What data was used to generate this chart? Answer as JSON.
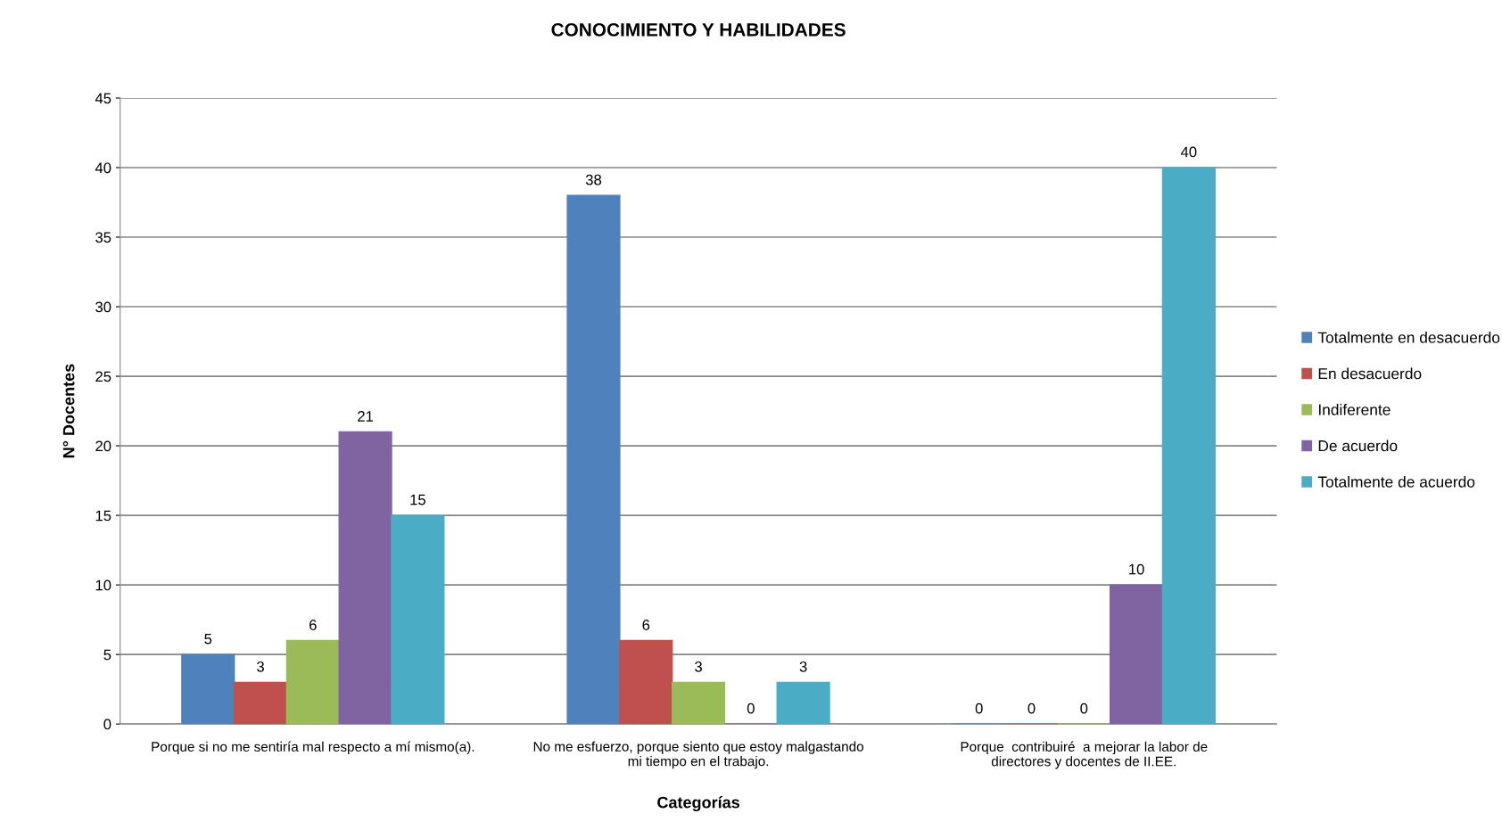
{
  "chart_data": {
    "type": "bar",
    "title": "CONOCIMIENTO Y HABILIDADES",
    "xlabel": "Categorías",
    "ylabel": "N° Docentes",
    "categories": [
      "Porque si no me sentiría mal respecto a mí mismo(a).",
      "No me esfuerzo, porque siento que estoy malgastando mi tiempo en el trabajo.",
      "Porque  contribuiré  a mejorar la labor de directores y docentes de II.EE."
    ],
    "series": [
      {
        "name": "Totalmente en desacuerdo",
        "color": "#4f81bd",
        "values": [
          5,
          38,
          0
        ]
      },
      {
        "name": "En desacuerdo",
        "color": "#c0504d",
        "values": [
          3,
          6,
          0
        ]
      },
      {
        "name": "Indiferente",
        "color": "#9bbb59",
        "values": [
          6,
          3,
          0
        ]
      },
      {
        "name": "De acuerdo",
        "color": "#8064a2",
        "values": [
          21,
          0,
          10
        ]
      },
      {
        "name": "Totalmente de acuerdo",
        "color": "#4bacc6",
        "values": [
          15,
          3,
          40
        ]
      }
    ],
    "ylim": [
      0,
      45
    ],
    "yticks": [
      0,
      5,
      10,
      15,
      20,
      25,
      30,
      35,
      40,
      45
    ],
    "grid": "y",
    "legend": "right",
    "data_labels": true
  }
}
